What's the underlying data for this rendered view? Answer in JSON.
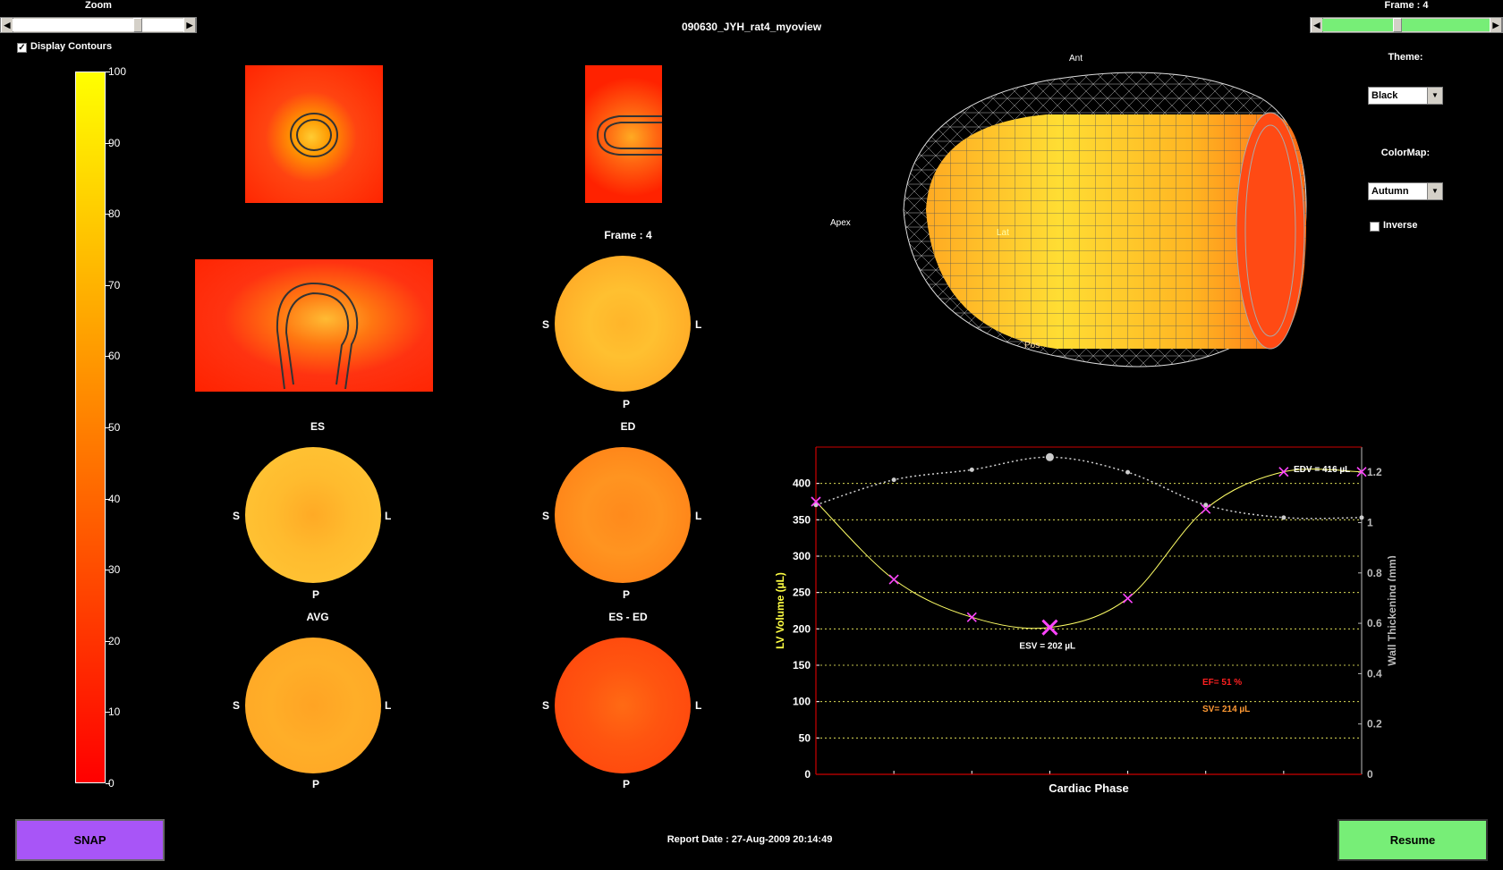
{
  "zoom": {
    "label": "Zoom",
    "value_fraction": 0.71
  },
  "window_title": "090630_JYH_rat4_myoview",
  "frame_slider": {
    "label": "Frame : 4",
    "value_fraction": 0.42
  },
  "display_contours": {
    "label": "Display Contours",
    "checked": true,
    "check_glyph": "✓"
  },
  "colorbar": {
    "ticks": [
      "100",
      "90",
      "80",
      "70",
      "60",
      "50",
      "40",
      "30",
      "20",
      "10",
      "0"
    ],
    "colormap": "autumn"
  },
  "panels": {
    "frame_title": "Frame : 4",
    "es_title": "ES",
    "ed_title": "ED",
    "avg_title": "AVG",
    "diff_title": "ES - ED",
    "orient": {
      "S": "S",
      "L": "L",
      "P": "P"
    }
  },
  "view3d": {
    "ant": "Ant",
    "apex": "Apex",
    "lat": "Lat",
    "pos": "Pos"
  },
  "theme": {
    "label": "Theme:",
    "value": "Black"
  },
  "colormap_select": {
    "label": "ColorMap:",
    "value": "Autumn"
  },
  "inverse": {
    "label": "Inverse",
    "checked": false
  },
  "chart_data": {
    "type": "line",
    "xlabel": "Cardiac Phase",
    "ylabel": "LV Volume (µL)",
    "y2label": "Wall Thickening (mm)",
    "ylim": [
      0,
      450
    ],
    "y2lim": [
      0,
      1.3
    ],
    "yticks": [
      0,
      50,
      100,
      150,
      200,
      250,
      300,
      350,
      400
    ],
    "y2ticks": [
      "0",
      "0.2",
      "0.4",
      "0.6",
      "0.8",
      "1",
      "1.2"
    ],
    "x": [
      1,
      2,
      3,
      4,
      5,
      6,
      7,
      8
    ],
    "series": [
      {
        "values": [
          375,
          268,
          216,
          202,
          242,
          365,
          416,
          416
        ],
        "color": "#ffff66"
      },
      {
        "values": [
          1.07,
          1.17,
          1.21,
          1.26,
          1.2,
          1.07,
          1.02,
          1.02
        ],
        "color": "#d0d0d0",
        "axis": "right"
      }
    ],
    "annotations": {
      "edv": "EDV = 416 µL",
      "esv": "ESV = 202 µL",
      "ef": "EF= 51 %",
      "sv": "SV= 214 µL"
    },
    "colors": {
      "axis": "#cc0000",
      "grid": "#ffff66",
      "marker": "#ff44ff",
      "ef": "#ff2020",
      "sv": "#ff9933"
    }
  },
  "snap_button": "SNAP",
  "resume_button": "Resume",
  "report_date": "Report Date : 27-Aug-2009 20:14:49"
}
